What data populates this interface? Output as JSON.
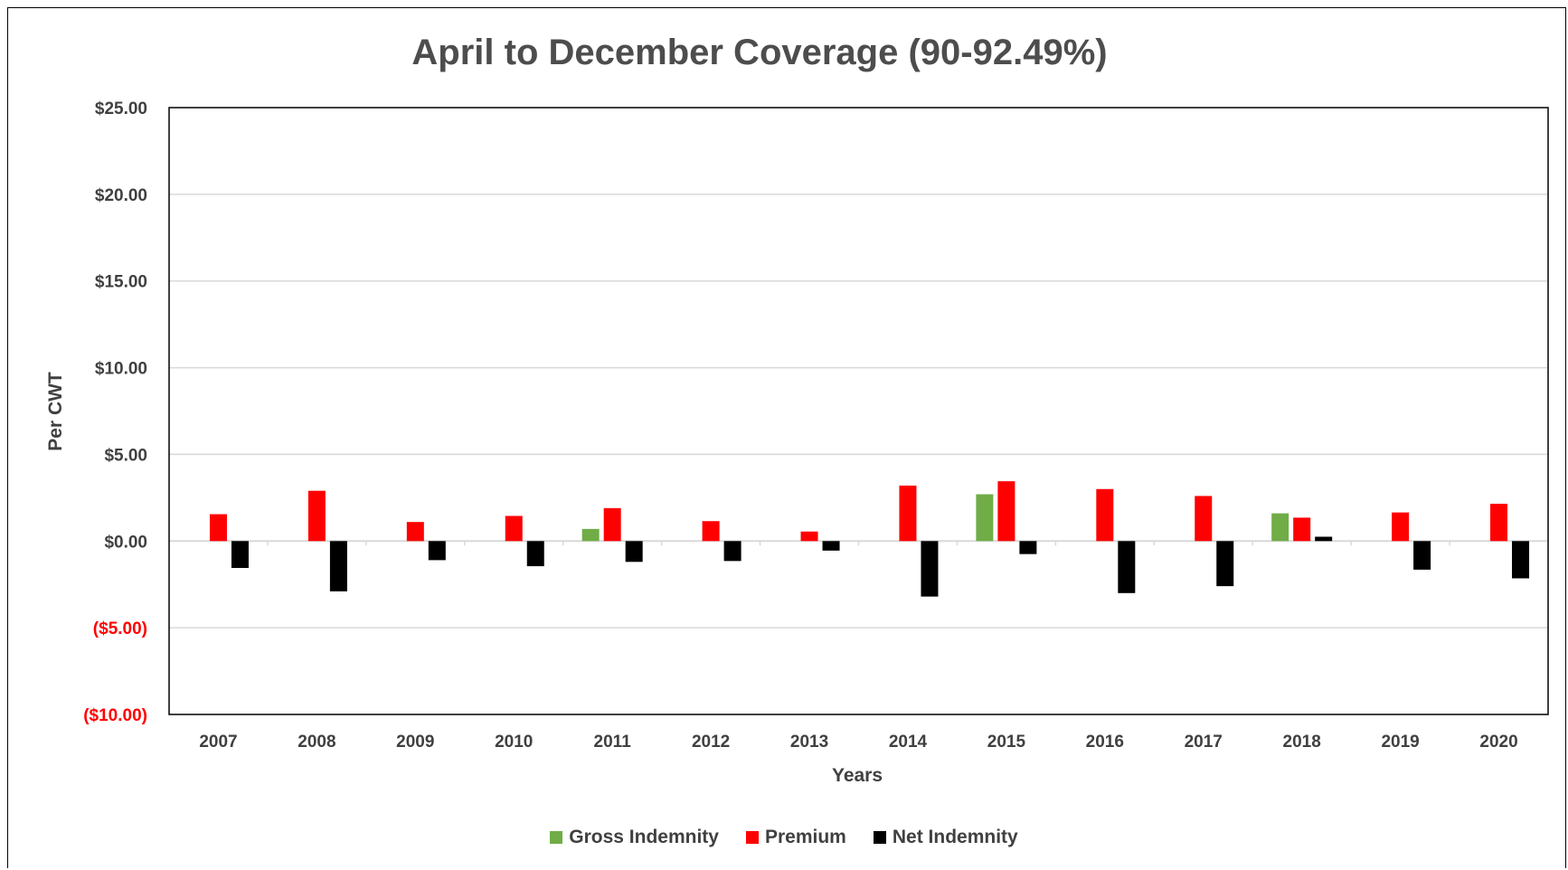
{
  "chart_data": {
    "type": "bar",
    "title": "April to December Coverage (90-92.49%)",
    "xlabel": "Years",
    "ylabel": "Per CWT",
    "ylim": [
      -10,
      25
    ],
    "ytick_values": [
      25,
      20,
      15,
      10,
      5,
      0,
      -5,
      -10
    ],
    "ytick_labels": [
      "$25.00",
      "$20.00",
      "$15.00",
      "$10.00",
      "$5.00",
      "$0.00",
      "($5.00)",
      "($10.00)"
    ],
    "negative_tick_color": "#ff0000",
    "grid": true,
    "legend_position": "bottom",
    "categories": [
      "2007",
      "2008",
      "2009",
      "2010",
      "2011",
      "2012",
      "2013",
      "2014",
      "2015",
      "2016",
      "2017",
      "2018",
      "2019",
      "2020"
    ],
    "series": [
      {
        "name": "Gross Indemnity",
        "color": "#70ad47",
        "values": [
          0,
          0,
          0,
          0,
          0.7,
          0,
          0,
          0,
          2.7,
          0,
          0,
          1.6,
          0,
          0
        ]
      },
      {
        "name": "Premium",
        "color": "#ff0000",
        "values": [
          1.55,
          2.9,
          1.1,
          1.45,
          1.9,
          1.15,
          0.55,
          3.2,
          3.45,
          3.0,
          2.6,
          1.35,
          1.65,
          2.15
        ]
      },
      {
        "name": "Net Indemnity",
        "color": "#000000",
        "values": [
          -1.55,
          -2.9,
          -1.1,
          -1.45,
          -1.2,
          -1.15,
          -0.55,
          -3.2,
          -0.75,
          -3.0,
          -2.6,
          0.25,
          -1.65,
          -2.15
        ]
      }
    ]
  }
}
